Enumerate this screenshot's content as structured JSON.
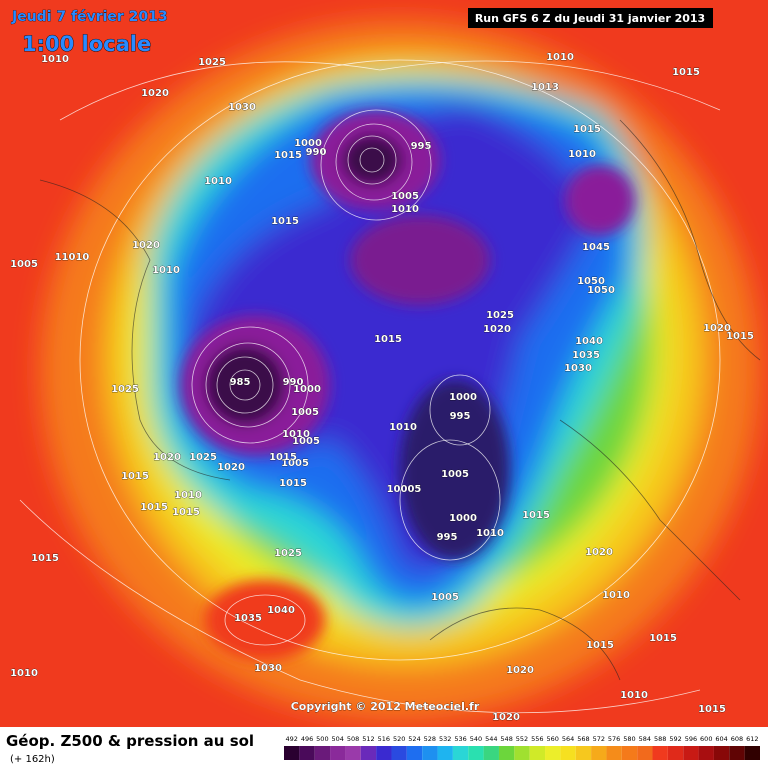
{
  "header": {
    "date": "Jeudi 7 février 2013",
    "time": "1:00 locale",
    "run": "Run GFS 6 Z du Jeudi 31 janvier 2013",
    "copyright": "Copyright © 2012 Meteociel.fr"
  },
  "footer": {
    "title": "Géop. Z500 & pression au sol",
    "lead": "(+ 162h)",
    "scale": [
      492,
      496,
      500,
      504,
      508,
      512,
      516,
      520,
      524,
      528,
      532,
      536,
      540,
      544,
      548,
      552,
      556,
      560,
      564,
      568,
      572,
      576,
      580,
      584,
      588,
      592,
      596,
      600,
      604,
      608,
      612
    ]
  },
  "pressure_labels": [
    "1010",
    "1025",
    "1020",
    "1030",
    "1010",
    "1015",
    "1013",
    "1015",
    "1010",
    "1000",
    "990",
    "1015",
    "995",
    "1010",
    "1005",
    "1010",
    "1015",
    "1045",
    "1020",
    "11010",
    "1005",
    "1010",
    "1050",
    "1050",
    "1025",
    "1020",
    "1015",
    "1040",
    "1035",
    "1030",
    "1020",
    "1015",
    "985",
    "990",
    "1000",
    "1025",
    "1000",
    "1005",
    "995",
    "1010",
    "1010",
    "1005",
    "1020",
    "1025",
    "1005",
    "1020",
    "1015",
    "1005",
    "1015",
    "1015",
    "10005",
    "1010",
    "1015",
    "1015",
    "1000",
    "1015",
    "995",
    "1010",
    "1025",
    "1020",
    "1015",
    "1040",
    "1035",
    "1010",
    "1005",
    "1015",
    "1015",
    "1030",
    "1010",
    "1020",
    "1010",
    "1015",
    "1020"
  ]
}
